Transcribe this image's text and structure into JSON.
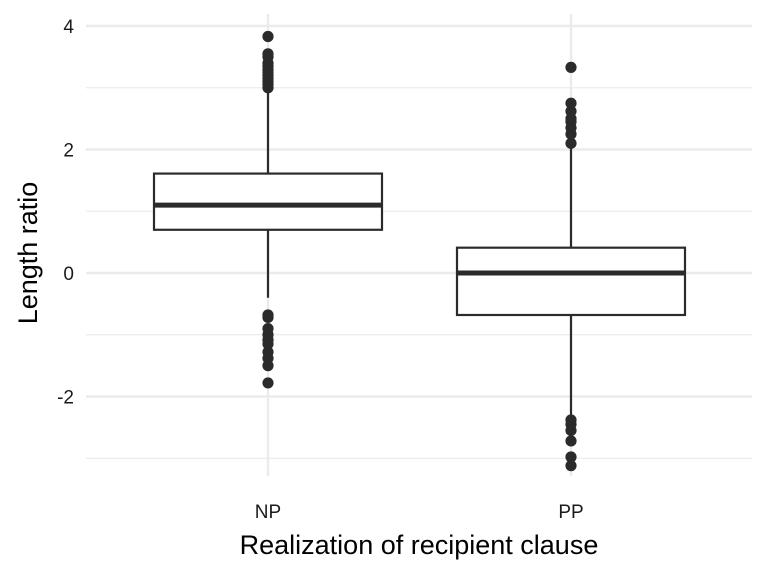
{
  "chart_data": {
    "type": "boxplot",
    "title": "",
    "xlabel": "Realization of recipient clause",
    "ylabel": "Length ratio",
    "ylim": [
      -3.25,
      4.2
    ],
    "y_ticks": [
      -2,
      0,
      2,
      4
    ],
    "y_minor_ticks": [
      -3,
      -1,
      1,
      3
    ],
    "grid": true,
    "theme": "minimal",
    "colors": {
      "grid": "#ebebeb",
      "box": "#2b2b2b",
      "point": "#2b2b2b",
      "text": "#1a1a1a"
    },
    "categories": [
      "NP",
      "PP"
    ],
    "boxes": [
      {
        "category": "NP",
        "q1": 0.7,
        "median": 1.1,
        "q3": 1.61,
        "whisker_low": -0.4,
        "whisker_high": 2.98,
        "outliers": [
          3.0,
          3.05,
          3.1,
          3.15,
          3.2,
          3.25,
          3.3,
          3.35,
          3.4,
          3.5,
          3.55,
          3.83,
          -0.68,
          -0.72,
          -0.9,
          -1.0,
          -1.08,
          -1.15,
          -1.28,
          -1.38,
          -1.5,
          -1.78
        ]
      },
      {
        "category": "PP",
        "q1": -0.68,
        "median": 0.0,
        "q3": 0.41,
        "whisker_low": -2.35,
        "whisker_high": 2.05,
        "outliers": [
          2.1,
          2.25,
          2.35,
          2.45,
          2.5,
          2.62,
          2.75,
          3.33,
          -2.38,
          -2.45,
          -2.55,
          -2.72,
          -2.98,
          -3.12
        ]
      }
    ]
  }
}
